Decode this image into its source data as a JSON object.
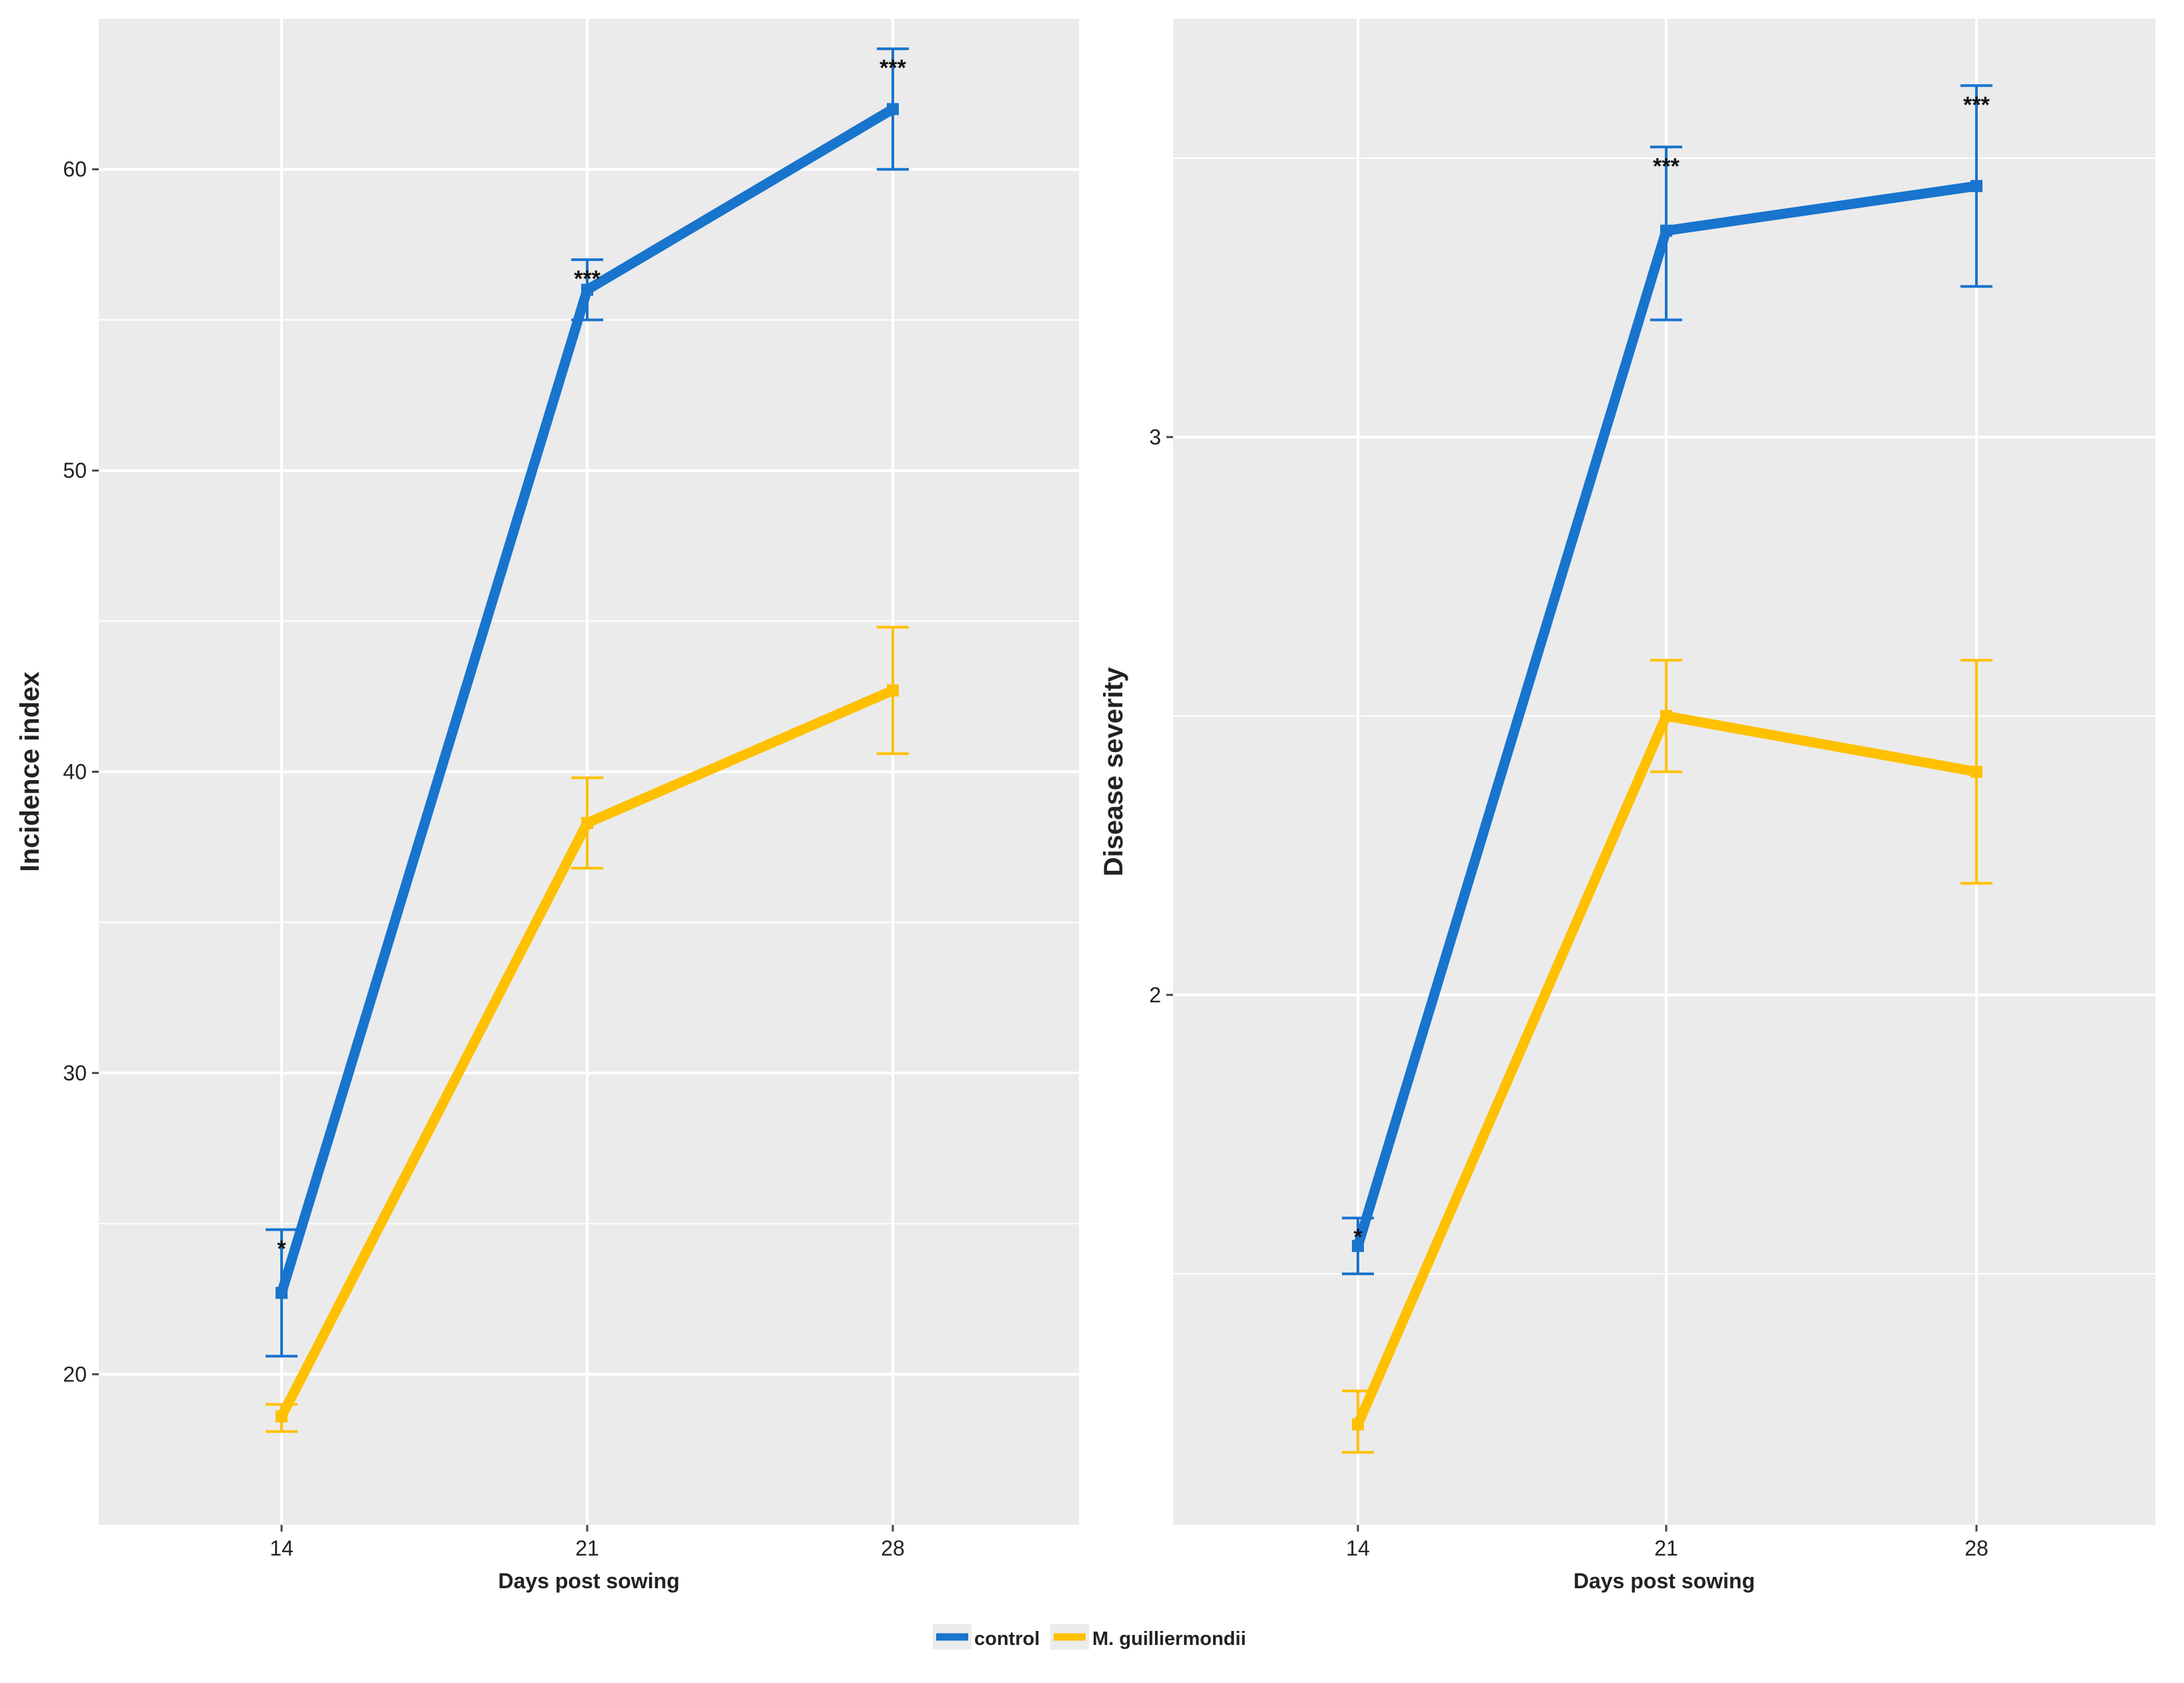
{
  "colors": {
    "control": "#1874CD",
    "treated": "#FFC000",
    "panel_bg": "#EBEBEB",
    "grid": "#FFFFFF",
    "text": "#222222"
  },
  "legend": {
    "control_label": "control",
    "treated_label": "M. guilliermondii"
  },
  "chart_data": [
    {
      "type": "line",
      "title": "",
      "xlabel": "Days post sowing",
      "ylabel": "Incidence index",
      "categories": [
        "14",
        "21",
        "28"
      ],
      "yticks": [
        "20",
        "30",
        "40",
        "50",
        "60"
      ],
      "ylim": [
        15,
        65
      ],
      "grid": true,
      "series": [
        {
          "name": "control",
          "values": [
            22.7,
            56.0,
            62.0
          ],
          "err_low": [
            20.6,
            55.0,
            60.0
          ],
          "err_high": [
            24.8,
            57.0,
            64.0
          ],
          "significance": [
            "*",
            "***",
            "***"
          ]
        },
        {
          "name": "M. guilliermondii",
          "values": [
            18.6,
            38.3,
            42.7
          ],
          "err_low": [
            18.1,
            36.8,
            40.6
          ],
          "err_high": [
            19.0,
            39.8,
            44.8
          ],
          "significance": [
            "",
            "",
            ""
          ]
        }
      ]
    },
    {
      "type": "line",
      "title": "",
      "xlabel": "Days post sowing",
      "ylabel": "Disease severity",
      "categories": [
        "14",
        "21",
        "28"
      ],
      "yticks": [
        "2",
        "3"
      ],
      "ylim": [
        1.05,
        3.75
      ],
      "grid": true,
      "series": [
        {
          "name": "control",
          "values": [
            1.55,
            3.37,
            3.45
          ],
          "err_low": [
            1.5,
            3.21,
            3.27
          ],
          "err_high": [
            1.6,
            3.52,
            3.63
          ],
          "significance": [
            "*",
            "***",
            "***"
          ]
        },
        {
          "name": "M. guilliermondii",
          "values": [
            1.23,
            2.5,
            2.4
          ],
          "err_low": [
            1.18,
            2.4,
            2.2
          ],
          "err_high": [
            1.29,
            2.6,
            2.6
          ],
          "significance": [
            "",
            "",
            ""
          ]
        }
      ]
    }
  ]
}
